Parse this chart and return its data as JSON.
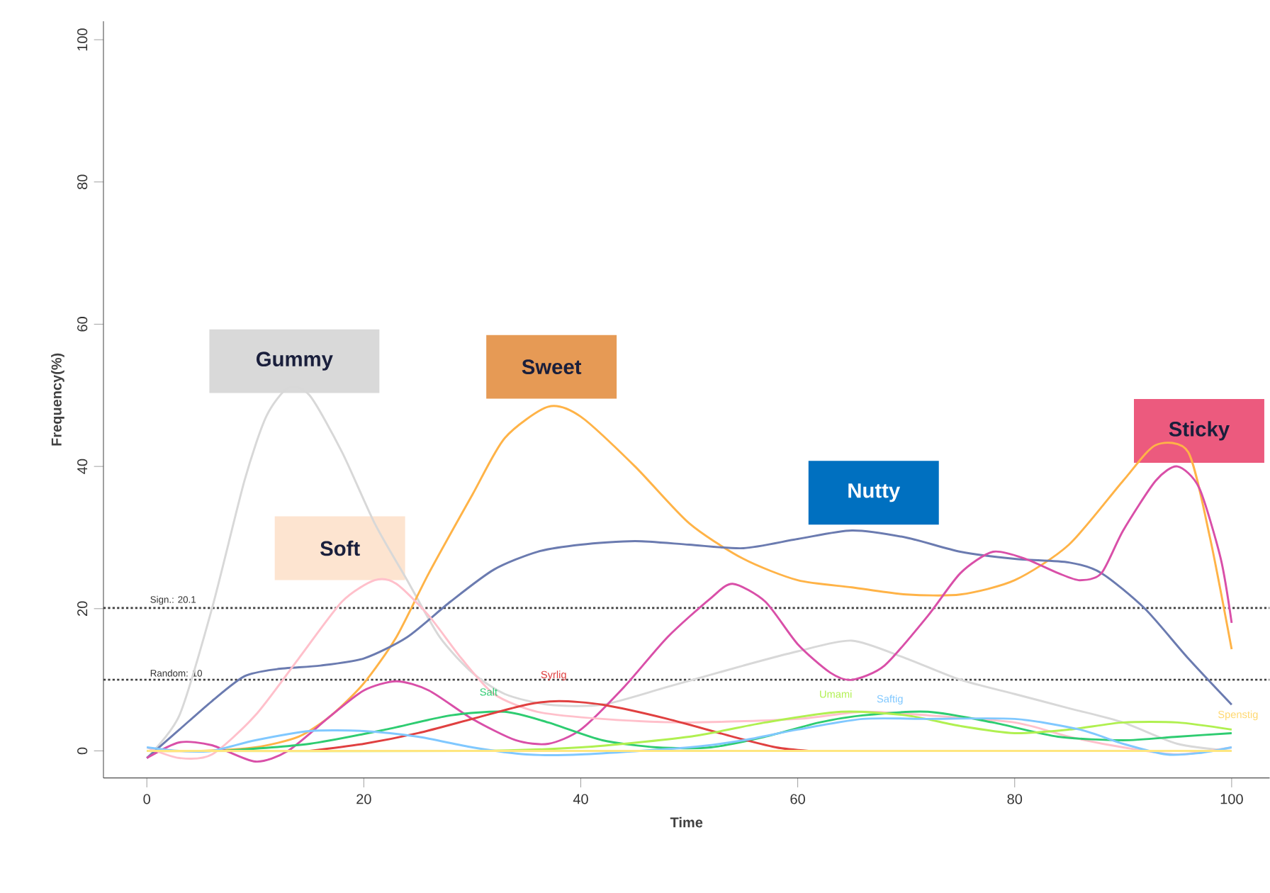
{
  "chart_data": {
    "type": "line",
    "xlabel": "Time",
    "ylabel": "Frequency(%)",
    "xlim": [
      -4,
      103.5
    ],
    "ylim": [
      -3.8,
      102.6
    ],
    "xticks": [
      0,
      20,
      40,
      60,
      80,
      100
    ],
    "yticks": [
      0,
      20,
      40,
      60,
      80,
      100
    ],
    "marker": "none",
    "line_style": "solid",
    "annotations": [
      "Gummy",
      "Sweet",
      "Nutty",
      "Sticky",
      "Soft",
      "Salt",
      "Syrlig",
      "Umami",
      "Saftig",
      "Spenstig"
    ],
    "ref_lines": [
      {
        "axis": "y",
        "value": 20.1,
        "label": "Sign.: 20.1",
        "line_style": "dotted"
      },
      {
        "axis": "y",
        "value": 10,
        "label": "Random: 10",
        "line_style": "dotted"
      }
    ],
    "series": [
      {
        "color": "#d8d8d8",
        "x": [
          0,
          3,
          6,
          9,
          11,
          13,
          15,
          18,
          21,
          24,
          27,
          30,
          33,
          37,
          42,
          48,
          55,
          60,
          65,
          70,
          75,
          80,
          85,
          90,
          95,
          100
        ],
        "values": [
          -1,
          5,
          20,
          38,
          47,
          51,
          50,
          42,
          32,
          24,
          16,
          11,
          8,
          6.5,
          6.5,
          9,
          12,
          14,
          15.5,
          13,
          10,
          8,
          6,
          4,
          1,
          0
        ]
      },
      {
        "color": "#ffb347",
        "x": [
          0,
          5,
          10,
          14,
          17,
          20,
          23,
          26,
          30,
          33,
          37,
          40,
          45,
          50,
          55,
          60,
          65,
          70,
          75,
          80,
          85,
          90,
          93,
          96,
          98,
          100
        ],
        "values": [
          0,
          0,
          0.5,
          2,
          5,
          9.5,
          16,
          25,
          36,
          44,
          48.4,
          47,
          40,
          32,
          27,
          24,
          23,
          22,
          22,
          24,
          29,
          38,
          43,
          42,
          30,
          14.3
        ]
      },
      {
        "color": "#6b7bb0",
        "x": [
          0,
          3,
          6,
          9,
          12,
          16,
          20,
          24,
          28,
          32,
          36,
          40,
          45,
          50,
          55,
          60,
          65,
          70,
          75,
          80,
          85,
          88,
          92,
          96,
          100
        ],
        "values": [
          -1,
          3,
          7,
          10.5,
          11.5,
          12,
          13,
          16,
          21,
          25.5,
          28,
          29,
          29.5,
          29,
          28.5,
          29.8,
          31,
          30,
          28,
          27,
          26.5,
          25,
          20,
          13,
          6.5
        ]
      },
      {
        "color": "#d94fa8",
        "x": [
          0,
          3,
          6,
          10,
          13,
          17,
          20,
          23,
          26,
          30,
          34,
          37,
          40,
          44,
          48,
          52,
          54,
          57,
          60,
          63,
          65,
          68,
          72,
          75,
          78,
          81,
          84,
          86,
          88,
          90,
          93,
          95,
          97,
          99,
          100
        ],
        "values": [
          -1,
          1.2,
          0.8,
          -1.5,
          0,
          5,
          8.5,
          9.8,
          8.5,
          4.5,
          1.5,
          1,
          3,
          9,
          16,
          21.5,
          23.5,
          21,
          15,
          11,
          10,
          12,
          19,
          25,
          28,
          27,
          25,
          24,
          25,
          31,
          38,
          40,
          37,
          27,
          18
        ]
      },
      {
        "color": "#ffc0cb",
        "x": [
          0,
          3,
          6,
          10,
          14,
          18,
          21,
          23,
          26,
          29,
          32,
          36,
          42,
          50,
          60,
          66,
          72,
          80,
          85,
          90,
          95,
          100
        ],
        "values": [
          0.5,
          -1,
          -0.5,
          5,
          13,
          21,
          24,
          23.5,
          19,
          13,
          8,
          5.5,
          4.5,
          4,
          4.5,
          5.5,
          5,
          4,
          2,
          0.5,
          -0.5,
          0.5
        ]
      },
      {
        "color": "#2ecc71",
        "x": [
          7,
          15,
          22,
          28,
          33,
          37,
          42,
          47,
          52,
          57,
          62,
          66,
          72,
          78,
          84,
          90,
          95,
          100
        ],
        "values": [
          0,
          1,
          3,
          5,
          5.5,
          4,
          1.5,
          0.5,
          0.5,
          2,
          4,
          5,
          5.5,
          4,
          2,
          1.5,
          2,
          2.5
        ]
      },
      {
        "color": "#e04040",
        "x": [
          15,
          20,
          25,
          30,
          35,
          38,
          42,
          48,
          54,
          58,
          61
        ],
        "values": [
          0,
          1,
          2.5,
          4.5,
          6.5,
          7,
          6.5,
          4.5,
          2,
          0.5,
          0
        ]
      },
      {
        "color": "#b0f050",
        "x": [
          0,
          30,
          40,
          50,
          57,
          64,
          70,
          75,
          80,
          85,
          90,
          95,
          100
        ],
        "values": [
          0,
          0,
          0.5,
          2,
          4,
          5.5,
          5,
          3.5,
          2.5,
          3,
          4,
          4,
          3
        ]
      },
      {
        "color": "#80c8ff",
        "x": [
          0,
          3,
          6,
          10,
          15,
          20,
          25,
          30,
          35,
          40,
          50,
          55,
          60,
          66,
          72,
          80,
          86,
          90,
          94,
          97,
          100
        ],
        "values": [
          0.5,
          0,
          0,
          1.5,
          2.8,
          2.8,
          2,
          0.5,
          -0.5,
          -0.5,
          0.5,
          1.5,
          3,
          4.5,
          4.5,
          4.5,
          3,
          1,
          -0.5,
          -0.3,
          0.5
        ]
      },
      {
        "color": "#ffe680",
        "x": [
          0,
          100
        ],
        "values": [
          0,
          0
        ]
      }
    ]
  }
}
